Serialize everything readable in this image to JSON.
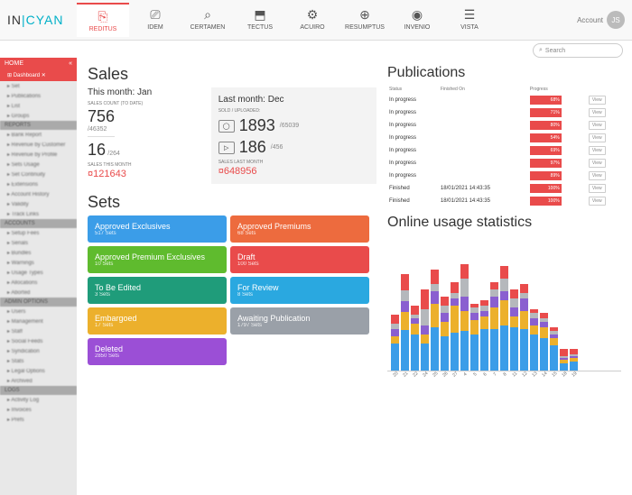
{
  "logo": {
    "p1": "IN",
    "sep": "|",
    "p2": "CYAN"
  },
  "nav": [
    {
      "label": "REDITUS",
      "icon": "⎘",
      "active": true
    },
    {
      "label": "IDEM",
      "icon": "⎚"
    },
    {
      "label": "CERTAMEN",
      "icon": "⌕"
    },
    {
      "label": "TECTUS",
      "icon": "⬒"
    },
    {
      "label": "ACUIRO",
      "icon": "⚙"
    },
    {
      "label": "RESUMPTUS",
      "icon": "⊕"
    },
    {
      "label": "INVENIO",
      "icon": "◉"
    },
    {
      "label": "VISTA",
      "icon": "☰"
    }
  ],
  "account": {
    "label": "Account",
    "initials": "JS"
  },
  "search": {
    "placeholder": "Search"
  },
  "sidebar": {
    "home_hdr": "HOME",
    "dashboard": "Dashboard",
    "groups": [
      {
        "hdr": "",
        "items": [
          "Set",
          "Publications"
        ]
      },
      {
        "hdr": "",
        "items": [
          "List",
          "Groups"
        ]
      },
      {
        "hdr": "REPORTS",
        "items": [
          "Bank Report",
          "Revenue by Customer",
          "Revenue by Profile",
          "Sets Usage",
          "Set Continuity",
          "Extensions",
          "Account History",
          "Validity",
          "Track Links"
        ]
      },
      {
        "hdr": "ACCOUNTS",
        "items": [
          "Setup Fees",
          "Serials",
          "Bundles",
          "Warnings",
          "Usage Types",
          "Allocations",
          "Aborted"
        ]
      },
      {
        "hdr": "ADMIN OPTIONS",
        "items": [
          "Users",
          "Management",
          "Staff",
          "Social Feeds",
          "Syndication",
          "Stats",
          "Legal Options",
          "Archived"
        ]
      },
      {
        "hdr": "LOGS",
        "items": [
          "Activity Log",
          "Invoices",
          "Prefs"
        ]
      }
    ]
  },
  "sales": {
    "title": "Sales",
    "this_month": {
      "label": "This month: Jan",
      "count_lbl": "SALES COUNT (TO DATE)",
      "count": "756",
      "count_sub": "/46352",
      "month_count": "16",
      "month_sub": "/264",
      "month_lbl": "SALES THIS MONTH",
      "total": "¤121643"
    },
    "last_month": {
      "label": "Last month: Dec",
      "sold_lbl": "SOLD / UPLOADED:",
      "stat1": "1893",
      "stat1_sub": "/65039",
      "stat2": "186",
      "stat2_sub": "/456",
      "total_lbl": "SALES LAST MONTH",
      "total": "¤648956"
    }
  },
  "sets": {
    "title": "Sets",
    "items": [
      {
        "name": "Approved Exclusives",
        "count": "517 Sets",
        "color": "#3b9de8"
      },
      {
        "name": "Approved Premiums",
        "count": "68 Sets",
        "color": "#ed6b3e"
      },
      {
        "name": "Approved Premium Exclusives",
        "count": "10 Sets",
        "color": "#5fbb2e"
      },
      {
        "name": "Draft",
        "count": "100 Sets",
        "color": "#e94b4b"
      },
      {
        "name": "To Be Edited",
        "count": "3 Sets",
        "color": "#1f9c7a"
      },
      {
        "name": "For Review",
        "count": "8 Sets",
        "color": "#2aa8e0"
      },
      {
        "name": "Embargoed",
        "count": "17 Sets",
        "color": "#ecb02c"
      },
      {
        "name": "Awaiting Publication",
        "count": "1797 Sets",
        "color": "#9aa0a8"
      },
      {
        "name": "Deleted",
        "count": "2850 Sets",
        "color": "#9b4fd6"
      }
    ]
  },
  "publications": {
    "title": "Publications",
    "columns": [
      "Status",
      "Finished On",
      "Progress",
      ""
    ],
    "rows": [
      {
        "status": "In progress",
        "date": "",
        "pct": "68%"
      },
      {
        "status": "In progress",
        "date": "",
        "pct": "71%"
      },
      {
        "status": "In progress",
        "date": "",
        "pct": "80%"
      },
      {
        "status": "In progress",
        "date": "",
        "pct": "54%"
      },
      {
        "status": "In progress",
        "date": "",
        "pct": "69%"
      },
      {
        "status": "In progress",
        "date": "",
        "pct": "97%"
      },
      {
        "status": "In progress",
        "date": "",
        "pct": "89%"
      },
      {
        "status": "Finished",
        "date": "18/01/2021 14:43:35",
        "pct": "100%"
      },
      {
        "status": "Finished",
        "date": "18/01/2021 14:43:35",
        "pct": "100%"
      }
    ],
    "view_label": "View"
  },
  "usage": {
    "title": "Online usage statistics",
    "colors": {
      "blue": "#3b9de8",
      "yellow": "#ecb02c",
      "purple": "#8a5fd0",
      "grey": "#b5b8bc",
      "red": "#e94b4b"
    },
    "xlabels": [
      "20",
      "21",
      "22",
      "24",
      "25",
      "26",
      "27",
      "4",
      "5",
      "6",
      "7",
      "8",
      "11",
      "12",
      "13",
      "14",
      "15",
      "18",
      "19"
    ],
    "bars": [
      [
        30,
        8,
        8,
        6,
        10
      ],
      [
        45,
        20,
        12,
        12,
        18
      ],
      [
        40,
        12,
        6,
        4,
        10
      ],
      [
        30,
        10,
        10,
        18,
        22
      ],
      [
        48,
        26,
        14,
        8,
        16
      ],
      [
        38,
        16,
        10,
        8,
        10
      ],
      [
        42,
        30,
        8,
        6,
        12
      ],
      [
        44,
        22,
        16,
        20,
        16
      ],
      [
        40,
        16,
        8,
        6,
        4
      ],
      [
        46,
        14,
        6,
        6,
        6
      ],
      [
        46,
        24,
        12,
        8,
        8
      ],
      [
        50,
        28,
        10,
        14,
        14
      ],
      [
        48,
        12,
        10,
        10,
        10
      ],
      [
        46,
        20,
        14,
        6,
        10
      ],
      [
        40,
        10,
        8,
        6,
        4
      ],
      [
        36,
        12,
        6,
        4,
        6
      ],
      [
        28,
        8,
        4,
        4,
        4
      ],
      [
        8,
        4,
        2,
        2,
        8
      ],
      [
        10,
        4,
        2,
        2,
        6
      ]
    ]
  }
}
